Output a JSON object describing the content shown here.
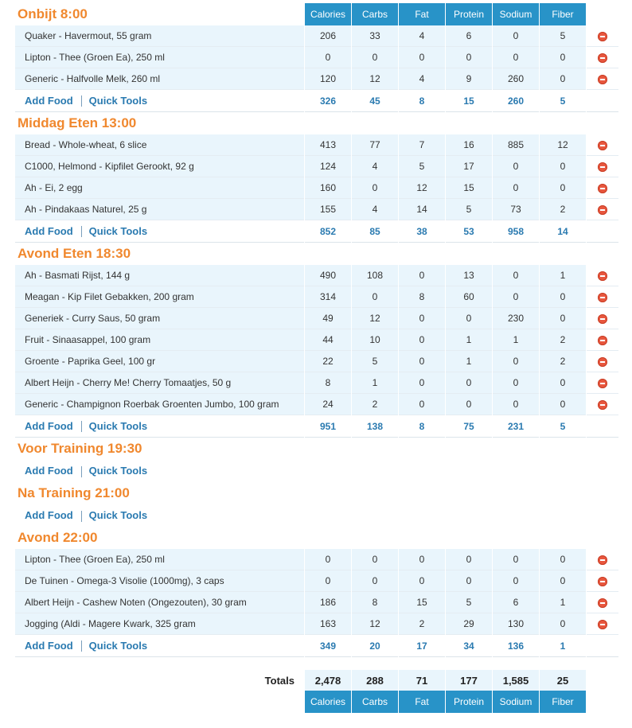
{
  "columns": [
    "Calories",
    "Carbs",
    "Fat",
    "Protein",
    "Sodium",
    "Fiber"
  ],
  "links": {
    "add_food": "Add Food",
    "quick_tools": "Quick Tools"
  },
  "meals": [
    {
      "title": "Onbijt 8:00",
      "foods": [
        {
          "name": "Quaker - Havermout, 55 gram",
          "values": [
            "206",
            "33",
            "4",
            "6",
            "0",
            "5"
          ]
        },
        {
          "name": "Lipton - Thee (Groen Ea), 250 ml",
          "values": [
            "0",
            "0",
            "0",
            "0",
            "0",
            "0"
          ]
        },
        {
          "name": "Generic - Halfvolle Melk, 260 ml",
          "values": [
            "120",
            "12",
            "4",
            "9",
            "260",
            "0"
          ]
        }
      ],
      "totals": [
        "326",
        "45",
        "8",
        "15",
        "260",
        "5"
      ]
    },
    {
      "title": "Middag Eten 13:00",
      "foods": [
        {
          "name": "Bread - Whole-wheat, 6 slice",
          "values": [
            "413",
            "77",
            "7",
            "16",
            "885",
            "12"
          ]
        },
        {
          "name": "C1000, Helmond - Kipfilet Gerookt, 92 g",
          "values": [
            "124",
            "4",
            "5",
            "17",
            "0",
            "0"
          ]
        },
        {
          "name": "Ah - Ei, 2 egg",
          "values": [
            "160",
            "0",
            "12",
            "15",
            "0",
            "0"
          ]
        },
        {
          "name": "Ah - Pindakaas Naturel, 25 g",
          "values": [
            "155",
            "4",
            "14",
            "5",
            "73",
            "2"
          ]
        }
      ],
      "totals": [
        "852",
        "85",
        "38",
        "53",
        "958",
        "14"
      ]
    },
    {
      "title": "Avond Eten 18:30",
      "foods": [
        {
          "name": "Ah - Basmati Rijst, 144 g",
          "values": [
            "490",
            "108",
            "0",
            "13",
            "0",
            "1"
          ]
        },
        {
          "name": "Meagan - Kip Filet Gebakken, 200 gram",
          "values": [
            "314",
            "0",
            "8",
            "60",
            "0",
            "0"
          ]
        },
        {
          "name": "Generiek - Curry Saus, 50 gram",
          "values": [
            "49",
            "12",
            "0",
            "0",
            "230",
            "0"
          ]
        },
        {
          "name": "Fruit - Sinaasappel, 100 gram",
          "values": [
            "44",
            "10",
            "0",
            "1",
            "1",
            "2"
          ]
        },
        {
          "name": "Groente - Paprika Geel, 100 gr",
          "values": [
            "22",
            "5",
            "0",
            "1",
            "0",
            "2"
          ]
        },
        {
          "name": "Albert Heijn - Cherry Me! Cherry Tomaatjes, 50 g",
          "values": [
            "8",
            "1",
            "0",
            "0",
            "0",
            "0"
          ]
        },
        {
          "name": "Generic - Champignon Roerbak Groenten Jumbo, 100 gram",
          "values": [
            "24",
            "2",
            "0",
            "0",
            "0",
            "0"
          ]
        }
      ],
      "totals": [
        "951",
        "138",
        "8",
        "75",
        "231",
        "5"
      ]
    },
    {
      "title": "Voor Training 19:30",
      "foods": [],
      "totals": null
    },
    {
      "title": "Na Training 21:00",
      "foods": [],
      "totals": null
    },
    {
      "title": "Avond 22:00",
      "foods": [
        {
          "name": "Lipton - Thee (Groen Ea), 250 ml",
          "values": [
            "0",
            "0",
            "0",
            "0",
            "0",
            "0"
          ]
        },
        {
          "name": "De Tuinen - Omega-3 Visolie (1000mg), 3 caps",
          "values": [
            "0",
            "0",
            "0",
            "0",
            "0",
            "0"
          ]
        },
        {
          "name": "Albert Heijn - Cashew Noten (Ongezouten), 30 gram",
          "values": [
            "186",
            "8",
            "15",
            "5",
            "6",
            "1"
          ]
        },
        {
          "name": "Jogging (Aldi - Magere Kwark, 325 gram",
          "values": [
            "163",
            "12",
            "2",
            "29",
            "130",
            "0"
          ]
        }
      ],
      "totals": [
        "349",
        "20",
        "17",
        "34",
        "136",
        "1"
      ]
    }
  ],
  "grand_totals": {
    "label": "Totals",
    "values": [
      "2,478",
      "288",
      "71",
      "177",
      "1,585",
      "25"
    ]
  },
  "icons": {
    "delete": "delete-circle-icon"
  },
  "colors": {
    "header_bg": "#2893c8",
    "meal_title": "#f0882e",
    "link": "#2a7ab0",
    "row_bg": "#e9f5fc",
    "delete": "#e8573e"
  }
}
